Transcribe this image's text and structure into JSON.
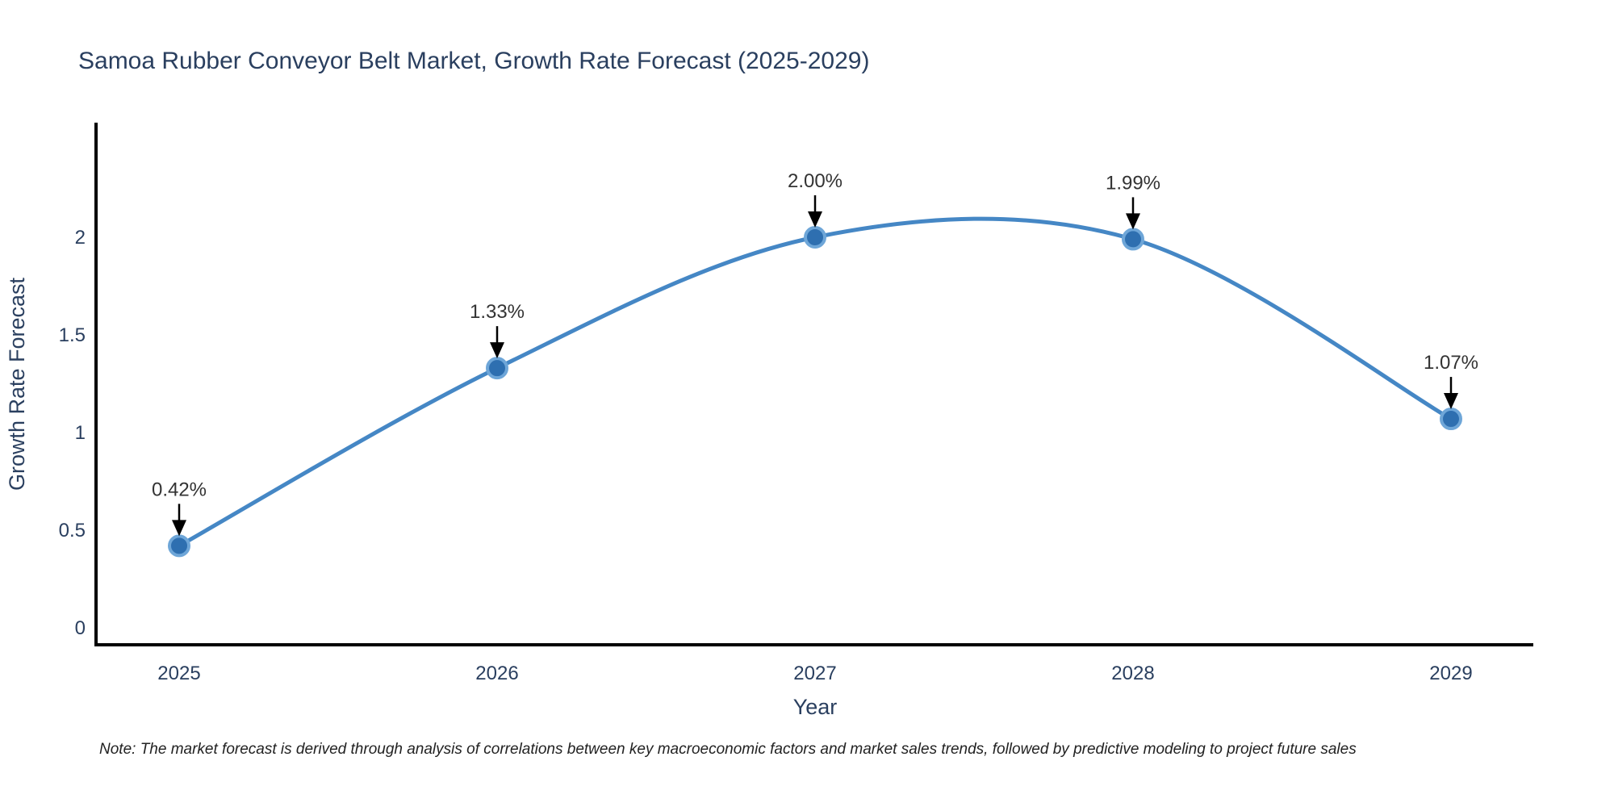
{
  "title": "Samoa Rubber Conveyor Belt Market, Growth Rate Forecast (2025-2029)",
  "note": "Note: The market forecast is derived through analysis of correlations between key macroeconomic factors and market sales trends, followed by predictive modeling to project future sales",
  "chart_data": {
    "type": "line",
    "title": "Samoa Rubber Conveyor Belt Market, Growth Rate Forecast (2025-2029)",
    "xlabel": "Year",
    "ylabel": "Growth Rate Forecast",
    "x": [
      "2025",
      "2026",
      "2027",
      "2028",
      "2029"
    ],
    "series": [
      {
        "name": "Growth Rate Forecast",
        "values": [
          0.42,
          1.33,
          2.0,
          1.99,
          1.07
        ]
      }
    ],
    "annotations": [
      "0.42%",
      "1.33%",
      "2.00%",
      "1.99%",
      "1.07%"
    ],
    "ytick_values": [
      0,
      0.5,
      1,
      1.5,
      2
    ],
    "ytick_labels": [
      "0",
      "0.5",
      "1",
      "1.5",
      "2"
    ],
    "ylim": [
      0,
      2.55
    ],
    "line_shape": "spline",
    "grid": false,
    "legend": "none",
    "markers": true,
    "colors": {
      "line": "#4587c5",
      "marker_fill": "#2e6fb0",
      "marker_edge": "#6ea6d8",
      "axis_line": "#000000",
      "title_text": "#2a3f5f",
      "tick_text": "#2a3f5f",
      "annotation_text": "#333333",
      "arrow": "#000000",
      "background": "#ffffff"
    }
  }
}
